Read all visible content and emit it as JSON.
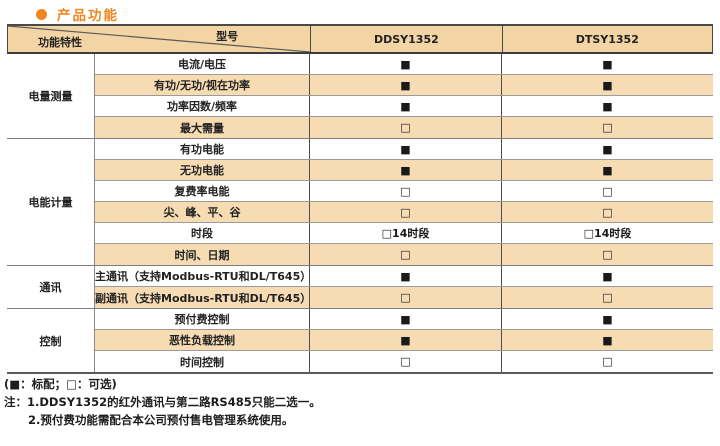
{
  "title": {
    "text": "产品功能"
  },
  "colors": {
    "accent_orange": "#F0861F",
    "header_bg": "#F3D4A5",
    "stripe_bg": "#F7DBB3"
  },
  "table": {
    "corner": {
      "top_right": "型号",
      "bottom_left": "功能特性"
    },
    "columns": [
      "DDSY1352",
      "DTSY1352"
    ],
    "groups": [
      {
        "name": "电量测量",
        "rows": [
          {
            "feature": "电流/电压",
            "values": [
              "■",
              "■"
            ]
          },
          {
            "feature": "有功/无功/视在功率",
            "values": [
              "■",
              "■"
            ]
          },
          {
            "feature": "功率因数/频率",
            "values": [
              "■",
              "■"
            ]
          },
          {
            "feature": "最大需量",
            "values": [
              "□",
              "□"
            ]
          }
        ]
      },
      {
        "name": "电能计量",
        "rows": [
          {
            "feature": "有功电能",
            "values": [
              "■",
              "■"
            ]
          },
          {
            "feature": "无功电能",
            "values": [
              "■",
              "■"
            ]
          },
          {
            "feature": "复费率电能",
            "values": [
              "□",
              "□"
            ]
          },
          {
            "feature": "尖、峰、平、谷",
            "values": [
              "□",
              "□"
            ]
          },
          {
            "feature": "时段",
            "values": [
              "□14时段",
              "□14时段"
            ]
          },
          {
            "feature": "时间、日期",
            "values": [
              "□",
              "□"
            ]
          }
        ]
      },
      {
        "name": "通讯",
        "rows": [
          {
            "feature": "主通讯（支持Modbus-RTU和DL/T645）",
            "values": [
              "■",
              "■"
            ]
          },
          {
            "feature": "副通讯（支持Modbus-RTU和DL/T645）",
            "values": [
              "□",
              "□"
            ]
          }
        ]
      },
      {
        "name": "控制",
        "rows": [
          {
            "feature": "预付费控制",
            "values": [
              "■",
              "■"
            ]
          },
          {
            "feature": "恶性负载控制",
            "values": [
              "■",
              "■"
            ]
          },
          {
            "feature": "时间控制",
            "values": [
              "□",
              "□"
            ]
          }
        ]
      }
    ]
  },
  "footer": {
    "legend": "(■：标配；□：可选)",
    "note1": "注：1.DDSY1352的红外通讯与第二路RS485只能二选一。",
    "note2": "2.预付费功能需配合本公司预付售电管理系统使用。"
  }
}
